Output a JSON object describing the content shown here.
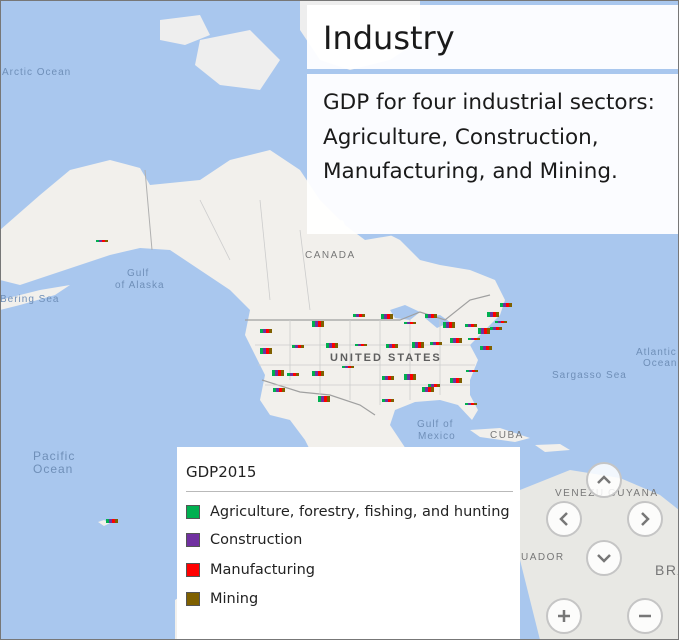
{
  "title": "Industry",
  "description": "GDP for four industrial sectors: Agriculture, Construction, Manufacturing, and Mining.",
  "map_labels": {
    "arctic_ocean": "Arctic Ocean",
    "canada": "CANADA",
    "gulf_of_alaska_line1": "Gulf",
    "gulf_of_alaska_line2": "of Alaska",
    "bering_sea": "Bering Sea",
    "united_states": "UNITED STATES",
    "pacific_line1": "Pacific",
    "pacific_line2": "Ocean",
    "atlantic_line1": "Atlantic",
    "atlantic_line2": "Ocean",
    "sargasso_sea": "Sargasso Sea",
    "gulf_of_mexico_line1": "Gulf of",
    "gulf_of_mexico_line2": "Mexico",
    "cuba": "CUBA",
    "venezuela": "VENEZU",
    "guyana": "GUYANA",
    "ecuador": "UADOR",
    "brazil": "BRA"
  },
  "legend": {
    "title": "GDP2015",
    "items": [
      {
        "label": "Agriculture, forestry, fishing, and hunting",
        "color": "#00b050"
      },
      {
        "label": "Construction",
        "color": "#7030a0"
      },
      {
        "label": "Manufacturing",
        "color": "#ff0000"
      },
      {
        "label": "Mining",
        "color": "#7f6000"
      }
    ]
  },
  "controls": {
    "pan_up": "chevron-up-icon",
    "pan_left": "chevron-left-icon",
    "pan_right": "chevron-right-icon",
    "pan_down": "chevron-down-icon",
    "zoom_in": "plus-icon",
    "zoom_out": "minus-icon"
  },
  "colors": {
    "water": "#a9c7ee",
    "land": "#f2f0ec",
    "agriculture": "#00b050",
    "construction": "#7030a0",
    "manufacturing": "#ff0000",
    "mining": "#7f6000"
  }
}
